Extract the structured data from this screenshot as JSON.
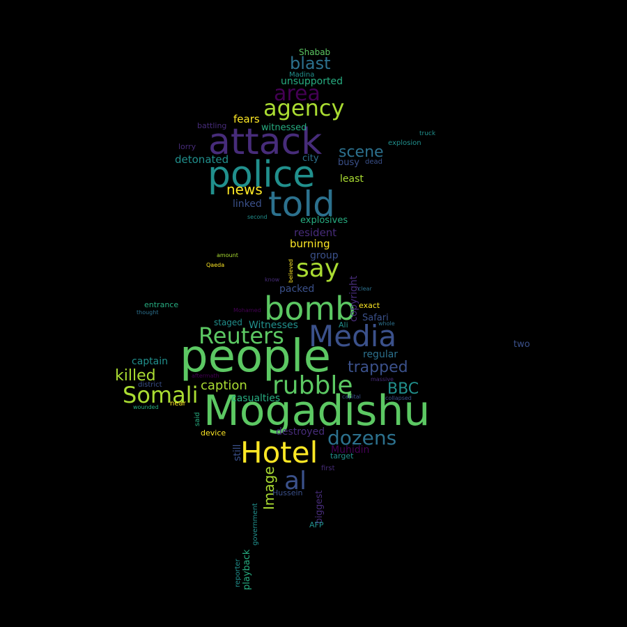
{
  "background": "#000000",
  "palette": [
    "#440154",
    "#472c7a",
    "#3b518b",
    "#2c718e",
    "#21908d",
    "#27ad81",
    "#5cc863",
    "#aadc32",
    "#fde725"
  ],
  "words": [
    {
      "text": "people",
      "color": "#5cc863"
    },
    {
      "text": "Mogadishu",
      "color": "#5cc863"
    },
    {
      "text": "police",
      "color": "#21908d"
    },
    {
      "text": "attack",
      "color": "#472c7a"
    },
    {
      "text": "told",
      "color": "#2c718e"
    },
    {
      "text": "bomb",
      "color": "#5cc863"
    },
    {
      "text": "Hotel",
      "color": "#fde725"
    },
    {
      "text": "Media",
      "color": "#3b518b"
    },
    {
      "text": "rubble",
      "color": "#5cc863"
    },
    {
      "text": "agency",
      "color": "#aadc32"
    },
    {
      "text": "Reuters",
      "color": "#5cc863"
    },
    {
      "text": "say",
      "color": "#aadc32"
    },
    {
      "text": "Somali",
      "color": "#aadc32"
    },
    {
      "text": "al",
      "color": "#3b518b"
    },
    {
      "text": "area",
      "color": "#440154"
    },
    {
      "text": "dozens",
      "color": "#2c718e"
    },
    {
      "text": "blast",
      "color": "#2c718e"
    },
    {
      "text": "scene",
      "color": "#2c718e"
    },
    {
      "text": "trapped",
      "color": "#3b518b"
    },
    {
      "text": "killed",
      "color": "#aadc32"
    },
    {
      "text": "news",
      "color": "#fde725"
    },
    {
      "text": "BBC",
      "color": "#21908d"
    },
    {
      "text": "caption",
      "color": "#aadc32"
    },
    {
      "text": "Image",
      "color": "#aadc32"
    },
    {
      "text": "copyright",
      "color": "#472c7a"
    },
    {
      "text": "fears",
      "color": "#fde725"
    },
    {
      "text": "burning",
      "color": "#fde725"
    },
    {
      "text": "detonated",
      "color": "#21908d"
    },
    {
      "text": "resident",
      "color": "#472c7a"
    },
    {
      "text": "explosives",
      "color": "#27ad81"
    },
    {
      "text": "unsupported",
      "color": "#27ad81"
    },
    {
      "text": "captain",
      "color": "#21908d"
    },
    {
      "text": "Witnesses",
      "color": "#21908d"
    },
    {
      "text": "casualties",
      "color": "#27ad81"
    },
    {
      "text": "regular",
      "color": "#2c718e"
    },
    {
      "text": "least",
      "color": "#aadc32"
    },
    {
      "text": "linked",
      "color": "#3b518b"
    },
    {
      "text": "witnessed",
      "color": "#27ad81"
    },
    {
      "text": "city",
      "color": "#2c718e"
    },
    {
      "text": "busy",
      "color": "#3b518b"
    },
    {
      "text": "group",
      "color": "#3b518b"
    },
    {
      "text": "packed",
      "color": "#3b518b"
    },
    {
      "text": "destroyed",
      "color": "#472c7a"
    },
    {
      "text": "Muhidin",
      "color": "#440154"
    },
    {
      "text": "Safari",
      "color": "#3b518b"
    },
    {
      "text": "Shabab",
      "color": "#5cc863"
    },
    {
      "text": "staged",
      "color": "#21908d"
    },
    {
      "text": "still",
      "color": "#3b518b"
    },
    {
      "text": "playback",
      "color": "#27ad81"
    },
    {
      "text": "biggest",
      "color": "#472c7a"
    },
    {
      "text": "two",
      "color": "#3b518b"
    },
    {
      "text": "battling",
      "color": "#472c7a"
    },
    {
      "text": "lorry",
      "color": "#472c7a"
    },
    {
      "text": "explosion",
      "color": "#21908d"
    },
    {
      "text": "device",
      "color": "#fde725"
    },
    {
      "text": "entrance",
      "color": "#27ad81"
    },
    {
      "text": "exact",
      "color": "#fde725"
    },
    {
      "text": "Ali",
      "color": "#21908d"
    },
    {
      "text": "Hussein",
      "color": "#3b518b"
    },
    {
      "text": "target",
      "color": "#21908d"
    },
    {
      "text": "AFP",
      "color": "#21908d"
    },
    {
      "text": "reporter",
      "color": "#21908d"
    },
    {
      "text": "government",
      "color": "#21908d"
    },
    {
      "text": "Madina",
      "color": "#21908d"
    },
    {
      "text": "truck",
      "color": "#21908d"
    },
    {
      "text": "dead",
      "color": "#3b518b"
    },
    {
      "text": "second",
      "color": "#21908d"
    },
    {
      "text": "amount",
      "color": "#aadc32"
    },
    {
      "text": "Qaeda",
      "color": "#fde725"
    },
    {
      "text": "believed",
      "color": "#fde725"
    },
    {
      "text": "know",
      "color": "#472c7a"
    },
    {
      "text": "clear",
      "color": "#2c718e"
    },
    {
      "text": "Mohamed",
      "color": "#440154"
    },
    {
      "text": "thought",
      "color": "#2c718e"
    },
    {
      "text": "whole",
      "color": "#2c718e"
    },
    {
      "text": "aftermath",
      "color": "#440154"
    },
    {
      "text": "district",
      "color": "#3b518b"
    },
    {
      "text": "massive",
      "color": "#472c7a"
    },
    {
      "text": "capital",
      "color": "#3b518b"
    },
    {
      "text": "collapsed",
      "color": "#3b518b"
    },
    {
      "text": "wounded",
      "color": "#27ad81"
    },
    {
      "text": "near",
      "color": "#fde725"
    },
    {
      "text": "said",
      "color": "#27ad81"
    },
    {
      "text": "first",
      "color": "#472c7a"
    }
  ]
}
